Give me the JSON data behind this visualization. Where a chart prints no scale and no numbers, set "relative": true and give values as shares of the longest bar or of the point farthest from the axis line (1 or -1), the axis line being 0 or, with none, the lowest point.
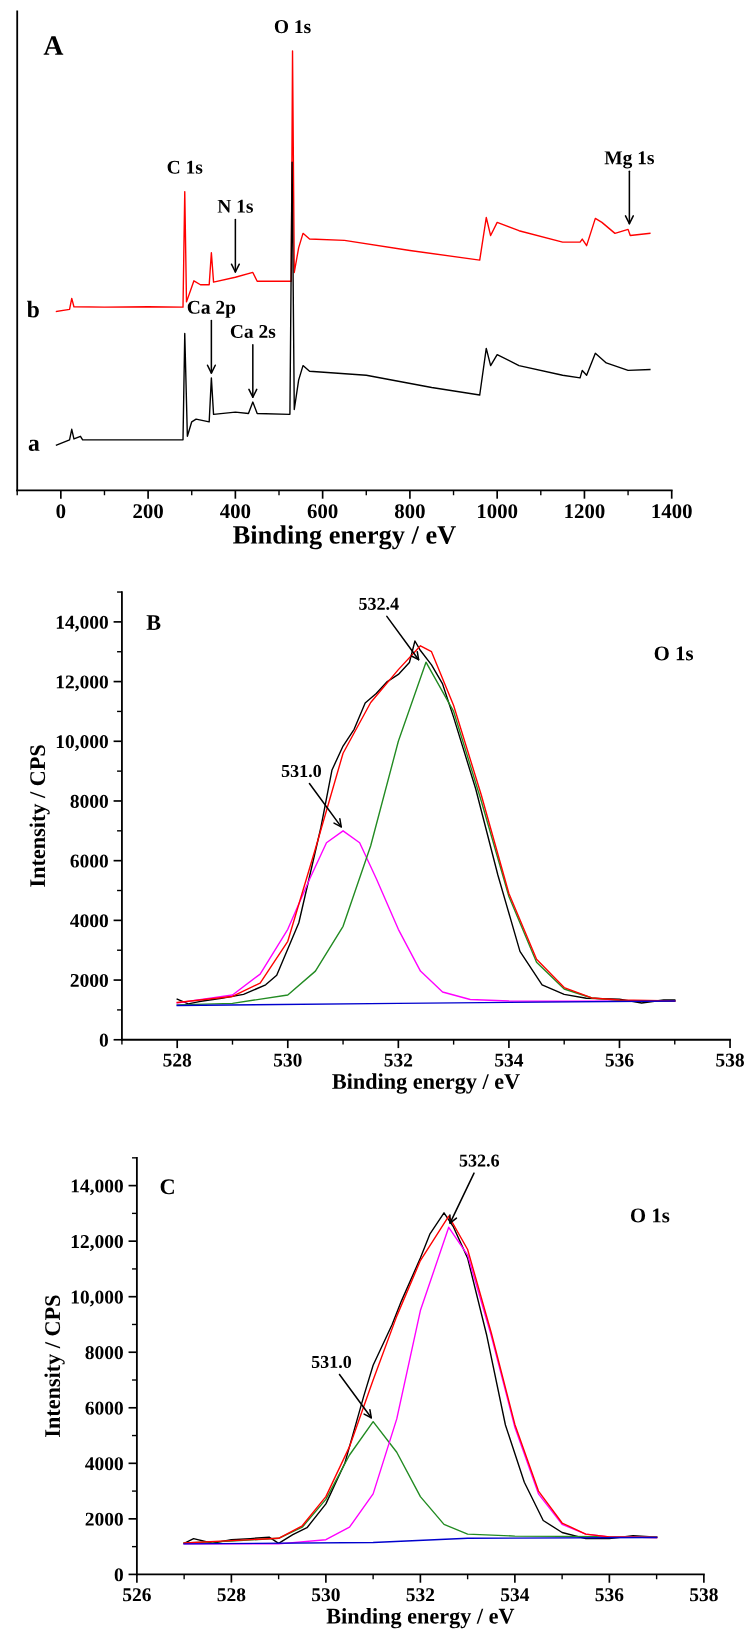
{
  "chart_data": [
    {
      "type": "line",
      "relative": true,
      "xlabel": "Binding energy / eV",
      "xlim": [
        -100,
        1400
      ],
      "xticks": [
        0,
        200,
        400,
        600,
        800,
        1000,
        1200,
        1400
      ],
      "tick_labels": "x",
      "annotations": [
        "A",
        {
          "text": "C 1s",
          "x": 284,
          "y": 0.68
        },
        {
          "text": "O 1s",
          "x": 531,
          "y": 1.0
        },
        {
          "text": "N 1s",
          "x": 400,
          "y": 0.49
        },
        {
          "text": "Mg 1s",
          "x": 1303,
          "y": 0.6
        },
        {
          "text": "Ca 2p",
          "x": 345,
          "y": 0.26
        },
        {
          "text": "Ca 2s",
          "x": 440,
          "y": 0.205
        }
      ],
      "series": [
        {
          "name": "b",
          "color": "#ff0000",
          "x": [
            -10,
            20,
            25,
            30,
            100,
            200,
            280,
            284,
            288,
            300,
            305,
            320,
            340,
            345,
            350,
            400,
            440,
            450,
            520,
            528,
            531,
            535,
            545,
            555,
            570,
            650,
            800,
            960,
            975,
            985,
            1000,
            1050,
            1150,
            1190,
            1195,
            1205,
            1225,
            1240,
            1270,
            1300,
            1305,
            1350
          ],
          "values": [
            0.407,
            0.412,
            0.437,
            0.418,
            0.417,
            0.418,
            0.417,
            0.68,
            0.429,
            0.463,
            0.477,
            0.468,
            0.468,
            0.541,
            0.474,
            0.485,
            0.496,
            0.476,
            0.476,
            0.476,
            1.0,
            0.496,
            0.552,
            0.585,
            0.572,
            0.569,
            0.546,
            0.524,
            0.621,
            0.58,
            0.61,
            0.591,
            0.565,
            0.565,
            0.572,
            0.557,
            0.619,
            0.61,
            0.585,
            0.594,
            0.58,
            0.585
          ]
        },
        {
          "name": "a",
          "color": "#000000",
          "x": [
            -10,
            20,
            25,
            30,
            45,
            50,
            200,
            280,
            284,
            290,
            300,
            310,
            340,
            345,
            350,
            400,
            430,
            440,
            450,
            525,
            530,
            535,
            545,
            555,
            570,
            700,
            850,
            960,
            975,
            985,
            1000,
            1050,
            1150,
            1190,
            1195,
            1205,
            1225,
            1250,
            1300,
            1350
          ],
          "values": [
            0.103,
            0.115,
            0.139,
            0.117,
            0.123,
            0.115,
            0.115,
            0.115,
            0.357,
            0.123,
            0.156,
            0.162,
            0.156,
            0.256,
            0.173,
            0.178,
            0.175,
            0.201,
            0.175,
            0.173,
            0.747,
            0.184,
            0.251,
            0.284,
            0.271,
            0.262,
            0.234,
            0.217,
            0.323,
            0.284,
            0.309,
            0.284,
            0.262,
            0.256,
            0.273,
            0.262,
            0.312,
            0.29,
            0.273,
            0.275
          ]
        }
      ]
    },
    {
      "type": "line",
      "xlabel": "Binding energy / eV",
      "ylabel": "Intensity / CPS",
      "xlim": [
        527,
        538
      ],
      "xticks": [
        528,
        530,
        532,
        534,
        536,
        538
      ],
      "ylim": [
        0,
        15000
      ],
      "yticks": [
        0,
        2000,
        4000,
        6000,
        8000,
        {
          "value": 10000,
          "label": "10,000"
        },
        {
          "value": 12000,
          "label": "12,000"
        },
        {
          "value": 14000,
          "label": "14,000"
        }
      ],
      "annotations": [
        "B",
        "O 1s",
        {
          "text": "531.0",
          "x": 531.0,
          "y": 7050
        },
        {
          "text": "532.4",
          "x": 532.4,
          "y": 12650
        }
      ],
      "series": [
        {
          "color": "#000000",
          "x": [
            528.0,
            528.2,
            528.4,
            528.8,
            529.2,
            529.6,
            529.8,
            530.0,
            530.2,
            530.4,
            530.6,
            530.8,
            531.0,
            531.2,
            531.4,
            531.6,
            531.8,
            532.0,
            532.2,
            532.3,
            532.4,
            532.6,
            532.8,
            533.0,
            533.4,
            533.8,
            534.2,
            534.6,
            535.0,
            535.4,
            536.0,
            536.4,
            536.8,
            537.0
          ],
          "values": [
            1360,
            1200,
            1280,
            1390,
            1520,
            1840,
            2160,
            3040,
            3920,
            5520,
            7120,
            9040,
            9840,
            10400,
            11280,
            11600,
            12000,
            12240,
            12640,
            13360,
            13040,
            12560,
            11920,
            10800,
            8400,
            5520,
            2960,
            1840,
            1520,
            1390,
            1360,
            1230,
            1330,
            1330
          ]
        },
        {
          "color": "#ff00ff",
          "x": [
            528,
            529,
            529.5,
            530,
            530.4,
            530.7,
            531.0,
            531.3,
            531.6,
            532.0,
            532.4,
            532.8,
            533.3,
            534,
            535,
            537
          ],
          "values": [
            1230,
            1500,
            2200,
            3700,
            5400,
            6600,
            7000,
            6600,
            5400,
            3700,
            2300,
            1600,
            1350,
            1300,
            1290,
            1300
          ]
        },
        {
          "color": "#228b22",
          "x": [
            528,
            529,
            530,
            530.5,
            531,
            531.5,
            532,
            532.5,
            533,
            533.5,
            534,
            534.5,
            535,
            535.5,
            536,
            537
          ],
          "values": [
            1170,
            1220,
            1500,
            2300,
            3800,
            6500,
            10000,
            12650,
            11000,
            8000,
            4800,
            2600,
            1700,
            1400,
            1320,
            1300
          ]
        },
        {
          "color": "#ff0000",
          "x": [
            528,
            529,
            529.5,
            530,
            530.5,
            531,
            531.5,
            532,
            532.4,
            532.6,
            533,
            533.5,
            534,
            534.5,
            535,
            535.5,
            536,
            537
          ],
          "values": [
            1250,
            1450,
            1900,
            3300,
            6400,
            9600,
            11300,
            12400,
            13200,
            13000,
            11200,
            8200,
            4900,
            2700,
            1750,
            1400,
            1330,
            1300
          ]
        },
        {
          "color": "#0000cd",
          "x": [
            528,
            532,
            537
          ],
          "values": [
            1150,
            1220,
            1300
          ]
        }
      ]
    },
    {
      "type": "line",
      "xlabel": "Binding energy / eV",
      "ylabel": "Intensity / CPS",
      "xlim": [
        526,
        538
      ],
      "xticks": [
        526,
        528,
        530,
        532,
        534,
        536,
        538
      ],
      "ylim": [
        0,
        15000
      ],
      "yticks": [
        0,
        2000,
        4000,
        6000,
        8000,
        {
          "value": 10000,
          "label": "10,000"
        },
        {
          "value": 12000,
          "label": "12,000"
        },
        {
          "value": 14000,
          "label": "14,000"
        }
      ],
      "annotations": [
        "C",
        "O 1s",
        {
          "text": "531.0",
          "x": 531.0,
          "y": 5550
        },
        {
          "text": "532.6",
          "x": 532.6,
          "y": 12550
        }
      ],
      "series": [
        {
          "color": "#000000",
          "x": [
            527,
            527.2,
            527.6,
            528,
            528.4,
            528.8,
            529,
            529.3,
            529.6,
            530,
            530.4,
            530.8,
            531.0,
            531.4,
            531.6,
            532.0,
            532.2,
            532.5,
            532.7,
            533.0,
            533.4,
            533.8,
            534.2,
            534.6,
            535.0,
            535.5,
            536,
            536.5,
            537
          ],
          "values": [
            1120,
            1290,
            1120,
            1250,
            1290,
            1340,
            1120,
            1430,
            1680,
            2540,
            4000,
            6410,
            7530,
            8990,
            9850,
            11390,
            12250,
            13020,
            12510,
            11390,
            8640,
            5380,
            3320,
            1940,
            1510,
            1290,
            1290,
            1390,
            1340
          ]
        },
        {
          "color": "#228b22",
          "x": [
            527,
            528,
            529,
            529.5,
            530,
            530.5,
            531,
            531.5,
            532,
            532.5,
            533,
            534,
            535,
            537
          ],
          "values": [
            1130,
            1200,
            1300,
            1700,
            2700,
            4300,
            5500,
            4400,
            2800,
            1800,
            1450,
            1380,
            1370,
            1350
          ]
        },
        {
          "color": "#ff00ff",
          "x": [
            527,
            529,
            530,
            530.5,
            531,
            531.5,
            532,
            532.6,
            533,
            533.5,
            534,
            534.5,
            535,
            535.5,
            536,
            537
          ],
          "values": [
            1100,
            1100,
            1250,
            1700,
            2900,
            5600,
            9500,
            12500,
            11500,
            8600,
            5300,
            2900,
            1800,
            1450,
            1350,
            1330
          ]
        },
        {
          "color": "#ff0000",
          "x": [
            527,
            529,
            529.5,
            530,
            530.5,
            531,
            531.5,
            532,
            532.6,
            533,
            533.5,
            534,
            534.5,
            535,
            535.5,
            536,
            537
          ],
          "values": [
            1130,
            1300,
            1750,
            2800,
            4600,
            7000,
            9300,
            11300,
            12900,
            11700,
            8700,
            5400,
            3000,
            1850,
            1450,
            1350,
            1330
          ]
        },
        {
          "color": "#0000cd",
          "x": [
            527,
            531,
            533,
            537
          ],
          "values": [
            1100,
            1150,
            1300,
            1330
          ]
        }
      ]
    }
  ]
}
